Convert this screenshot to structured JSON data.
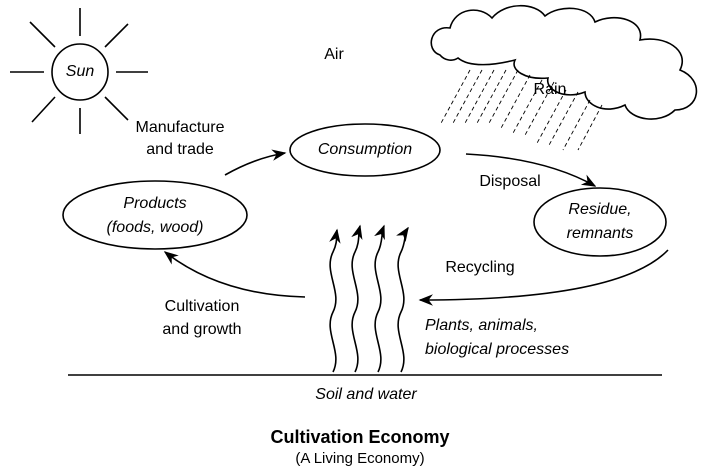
{
  "sun": "Sun",
  "air": "Air",
  "rain": "Rain",
  "nodes": {
    "consumption": [
      "Consumption"
    ],
    "products": [
      "Products",
      "(foods, wood)"
    ],
    "residue": [
      "Residue,",
      "remnants"
    ]
  },
  "edges": {
    "manufacture": [
      "Manufacture",
      "and trade"
    ],
    "disposal": [
      "Disposal"
    ],
    "recycling": [
      "Recycling"
    ],
    "cultivation": [
      "Cultivation",
      "and growth"
    ]
  },
  "processes": [
    "Plants, animals,",
    "biological processes"
  ],
  "ground": "Soil and water",
  "title": "Cultivation Economy",
  "subtitle": "(A Living Economy)"
}
